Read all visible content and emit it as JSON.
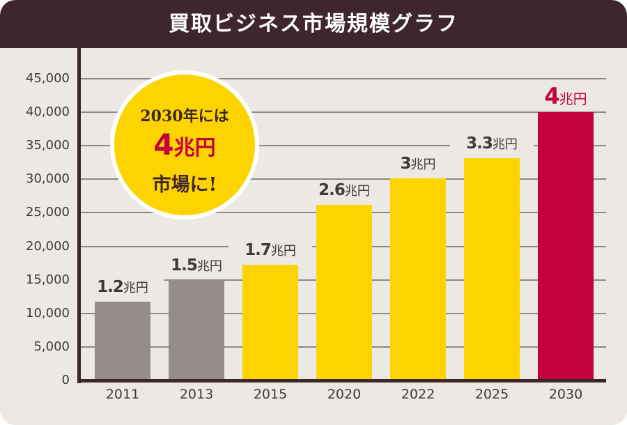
{
  "header": {
    "title": "買取ビジネス市場規模グラフ"
  },
  "badge": {
    "line1": "2030年には",
    "line2_number": "4",
    "line2_unit": "兆円",
    "line3": "市場に!"
  },
  "y_axis": {
    "ticks": [
      "45,000",
      "40,000",
      "35,000",
      "30,000",
      "25,000",
      "20,000",
      "15,000",
      "10,000",
      "5,000",
      "0"
    ]
  },
  "bars": [
    {
      "year": "2011",
      "label_num": "1.2",
      "label_unit": "兆円",
      "value": 11700,
      "color": "#958D8B"
    },
    {
      "year": "2013",
      "label_num": "1.5",
      "label_unit": "兆円",
      "value": 15000,
      "color": "#958D8B"
    },
    {
      "year": "2015",
      "label_num": "1.7",
      "label_unit": "兆円",
      "value": 17200,
      "color": "#FDD400"
    },
    {
      "year": "2020",
      "label_num": "2.6",
      "label_unit": "兆円",
      "value": 26200,
      "color": "#FDD400"
    },
    {
      "year": "2022",
      "label_num": "3",
      "label_unit": "兆円",
      "value": 30100,
      "color": "#FDD400"
    },
    {
      "year": "2025",
      "label_num": "3.3",
      "label_unit": "兆円",
      "value": 33200,
      "color": "#FDD400"
    },
    {
      "year": "2030",
      "label_num": "4",
      "label_unit": "兆円",
      "value": 40000,
      "color": "#C4003E"
    }
  ],
  "colors": {
    "header_bg": "#3E272C",
    "background": "#ECE8E4",
    "past": "#958D8B",
    "forecast": "#FDD400",
    "highlight": "#C4003E"
  },
  "chart_data": {
    "type": "bar",
    "title": "買取ビジネス市場規模グラフ",
    "categories": [
      "2011",
      "2013",
      "2015",
      "2020",
      "2022",
      "2025",
      "2030"
    ],
    "values": [
      12000,
      15000,
      17000,
      26000,
      30000,
      33000,
      40000
    ],
    "data_labels": [
      "1.2兆円",
      "1.5兆円",
      "1.7兆円",
      "2.6兆円",
      "3兆円",
      "3.3兆円",
      "4兆円"
    ],
    "xlabel": "",
    "ylabel": "",
    "ylim": [
      0,
      45000
    ],
    "yticks": [
      0,
      5000,
      10000,
      15000,
      20000,
      25000,
      30000,
      35000,
      40000,
      45000
    ],
    "grid": true,
    "annotation": "2030年には 4兆円 市場に!"
  }
}
